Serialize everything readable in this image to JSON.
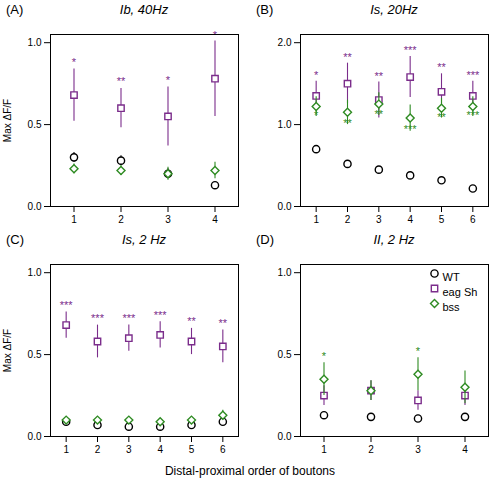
{
  "chart_data": [
    {
      "type": "scatter",
      "title": "Ib, 40Hz",
      "ylabel": "Max ΔF/F",
      "x": [
        1,
        2,
        3,
        4
      ],
      "xlim": [
        0.5,
        4.5
      ],
      "xticks": [
        1,
        2,
        3,
        4
      ],
      "ylim": [
        0,
        1.05
      ],
      "yticks": [
        {
          "value": 0,
          "label": "0.0"
        },
        0.5,
        {
          "value": 1.0,
          "label": "1.0"
        }
      ],
      "grid": false,
      "series": [
        {
          "name": "WT",
          "color": "#000000",
          "marker": "circle",
          "values": [
            0.3,
            0.28,
            0.2,
            0.13
          ],
          "yerr": [
            0.03,
            0.03,
            0.03,
            0.02
          ]
        },
        {
          "name": "eag Sh",
          "color": "#7B2D8B",
          "marker": "square",
          "values": [
            0.68,
            0.6,
            0.55,
            0.78
          ],
          "yerr": [
            0.16,
            0.12,
            0.18,
            0.23
          ]
        },
        {
          "name": "bss",
          "color": "#2E8B22",
          "marker": "diamond",
          "values": [
            0.23,
            0.22,
            0.2,
            0.22
          ],
          "yerr": [
            0.03,
            0.03,
            0.04,
            0.05
          ]
        }
      ],
      "annotations": [
        {
          "text": "(A)"
        },
        {
          "text": "*",
          "x": 1,
          "y": 0.86,
          "color": "#7B2D8B"
        },
        {
          "text": "**",
          "x": 2,
          "y": 0.74,
          "color": "#7B2D8B"
        },
        {
          "text": "*",
          "x": 3,
          "y": 0.75,
          "color": "#7B2D8B"
        },
        {
          "text": "*",
          "x": 4,
          "y": 1.02,
          "color": "#7B2D8B"
        }
      ]
    },
    {
      "type": "scatter",
      "title": "Is, 20Hz",
      "x": [
        1,
        2,
        3,
        4,
        5,
        6
      ],
      "xlim": [
        0.5,
        6.5
      ],
      "xticks": [
        1,
        2,
        3,
        4,
        5,
        6
      ],
      "ylim": [
        0,
        2.1
      ],
      "yticks": [
        {
          "value": 0,
          "label": "0.0"
        },
        {
          "value": 1.0,
          "label": "1.0"
        },
        {
          "value": 2.0,
          "label": "2.0"
        }
      ],
      "grid": false,
      "series": [
        {
          "name": "WT",
          "color": "#000000",
          "marker": "circle",
          "values": [
            0.7,
            0.52,
            0.45,
            0.38,
            0.32,
            0.22
          ],
          "yerr": [
            0.04,
            0.04,
            0.03,
            0.03,
            0.03,
            0.03
          ]
        },
        {
          "name": "eag Sh",
          "color": "#7B2D8B",
          "marker": "square",
          "values": [
            1.35,
            1.5,
            1.3,
            1.58,
            1.4,
            1.35
          ],
          "yerr": [
            0.18,
            0.25,
            0.22,
            0.25,
            0.22,
            0.18
          ]
        },
        {
          "name": "bss",
          "color": "#2E8B22",
          "marker": "diamond",
          "values": [
            1.22,
            1.15,
            1.25,
            1.08,
            1.2,
            1.22
          ],
          "yerr": [
            0.12,
            0.15,
            0.14,
            0.16,
            0.12,
            0.12
          ]
        }
      ],
      "annotations": [
        {
          "text": "(B)"
        },
        {
          "text": "*",
          "x": 1,
          "y": 1.56,
          "color": "#7B2D8B"
        },
        {
          "text": "**",
          "x": 2,
          "y": 1.78,
          "color": "#7B2D8B"
        },
        {
          "text": "**",
          "x": 3,
          "y": 1.55,
          "color": "#7B2D8B"
        },
        {
          "text": "***",
          "x": 4,
          "y": 1.86,
          "color": "#7B2D8B"
        },
        {
          "text": "**",
          "x": 5,
          "y": 1.65,
          "color": "#7B2D8B"
        },
        {
          "text": "***",
          "x": 6,
          "y": 1.56,
          "color": "#7B2D8B"
        },
        {
          "text": "*",
          "x": 1,
          "y": 1.07,
          "color": "#2E8B22"
        },
        {
          "text": "**",
          "x": 2,
          "y": 0.97,
          "color": "#2E8B22"
        },
        {
          "text": "**",
          "x": 3,
          "y": 1.08,
          "color": "#2E8B22"
        },
        {
          "text": "***",
          "x": 4,
          "y": 0.9,
          "color": "#2E8B22"
        },
        {
          "text": "**",
          "x": 5,
          "y": 1.05,
          "color": "#2E8B22"
        },
        {
          "text": "***",
          "x": 6,
          "y": 1.07,
          "color": "#2E8B22"
        }
      ]
    },
    {
      "type": "scatter",
      "title": "Is, 2 Hz",
      "ylabel": "Max ΔF/F",
      "xlabel": "Distal-proximal order of boutons",
      "x": [
        1,
        2,
        3,
        4,
        5,
        6
      ],
      "xlim": [
        0.5,
        6.5
      ],
      "xticks": [
        1,
        2,
        3,
        4,
        5,
        6
      ],
      "ylim": [
        0,
        1.05
      ],
      "yticks": [
        {
          "value": 0,
          "label": "0.0"
        },
        0.5,
        {
          "value": 1.0,
          "label": "1.0"
        }
      ],
      "grid": false,
      "series": [
        {
          "name": "WT",
          "color": "#000000",
          "marker": "circle",
          "values": [
            0.09,
            0.07,
            0.06,
            0.06,
            0.07,
            0.09
          ],
          "yerr": [
            0.01,
            0.01,
            0.01,
            0.01,
            0.01,
            0.02
          ]
        },
        {
          "name": "eag Sh",
          "color": "#7B2D8B",
          "marker": "square",
          "values": [
            0.68,
            0.58,
            0.6,
            0.62,
            0.58,
            0.55
          ],
          "yerr": [
            0.08,
            0.1,
            0.08,
            0.08,
            0.08,
            0.1
          ]
        },
        {
          "name": "bss",
          "color": "#2E8B22",
          "marker": "diamond",
          "values": [
            0.1,
            0.1,
            0.1,
            0.09,
            0.1,
            0.13
          ],
          "yerr": [
            0.01,
            0.01,
            0.01,
            0.01,
            0.02,
            0.03
          ]
        }
      ],
      "annotations": [
        {
          "text": "(C)"
        },
        {
          "text": "***",
          "x": 1,
          "y": 0.78,
          "color": "#7B2D8B"
        },
        {
          "text": "***",
          "x": 2,
          "y": 0.7,
          "color": "#7B2D8B"
        },
        {
          "text": "***",
          "x": 3,
          "y": 0.7,
          "color": "#7B2D8B"
        },
        {
          "text": "***",
          "x": 4,
          "y": 0.72,
          "color": "#7B2D8B"
        },
        {
          "text": "**",
          "x": 5,
          "y": 0.68,
          "color": "#7B2D8B"
        },
        {
          "text": "**",
          "x": 6,
          "y": 0.67,
          "color": "#7B2D8B"
        }
      ]
    },
    {
      "type": "scatter",
      "title": "II, 2 Hz",
      "legend": "upper right",
      "x": [
        1,
        2,
        3,
        4
      ],
      "xlim": [
        0.5,
        4.5
      ],
      "xticks": [
        1,
        2,
        3,
        4
      ],
      "ylim": [
        0,
        1.05
      ],
      "yticks": [
        {
          "value": 0,
          "label": "0.0"
        },
        0.5,
        {
          "value": 1.0,
          "label": "1.0"
        }
      ],
      "grid": false,
      "series": [
        {
          "name": "WT",
          "color": "#000000",
          "marker": "circle",
          "values": [
            0.13,
            0.12,
            0.11,
            0.12
          ],
          "yerr": [
            0.02,
            0.02,
            0.02,
            0.02
          ]
        },
        {
          "name": "eag Sh",
          "color": "#7B2D8B",
          "marker": "square",
          "values": [
            0.25,
            0.28,
            0.22,
            0.25
          ],
          "yerr": [
            0.06,
            0.06,
            0.06,
            0.06
          ]
        },
        {
          "name": "bss",
          "color": "#2E8B22",
          "marker": "diamond",
          "values": [
            0.35,
            0.28,
            0.38,
            0.3
          ],
          "yerr": [
            0.1,
            0.06,
            0.1,
            0.1
          ]
        }
      ],
      "annotations": [
        {
          "text": "(D)"
        },
        {
          "text": "*",
          "x": 1,
          "y": 0.47,
          "color": "#2E8B22"
        },
        {
          "text": "*",
          "x": 3,
          "y": 0.5,
          "color": "#2E8B22"
        }
      ]
    }
  ]
}
